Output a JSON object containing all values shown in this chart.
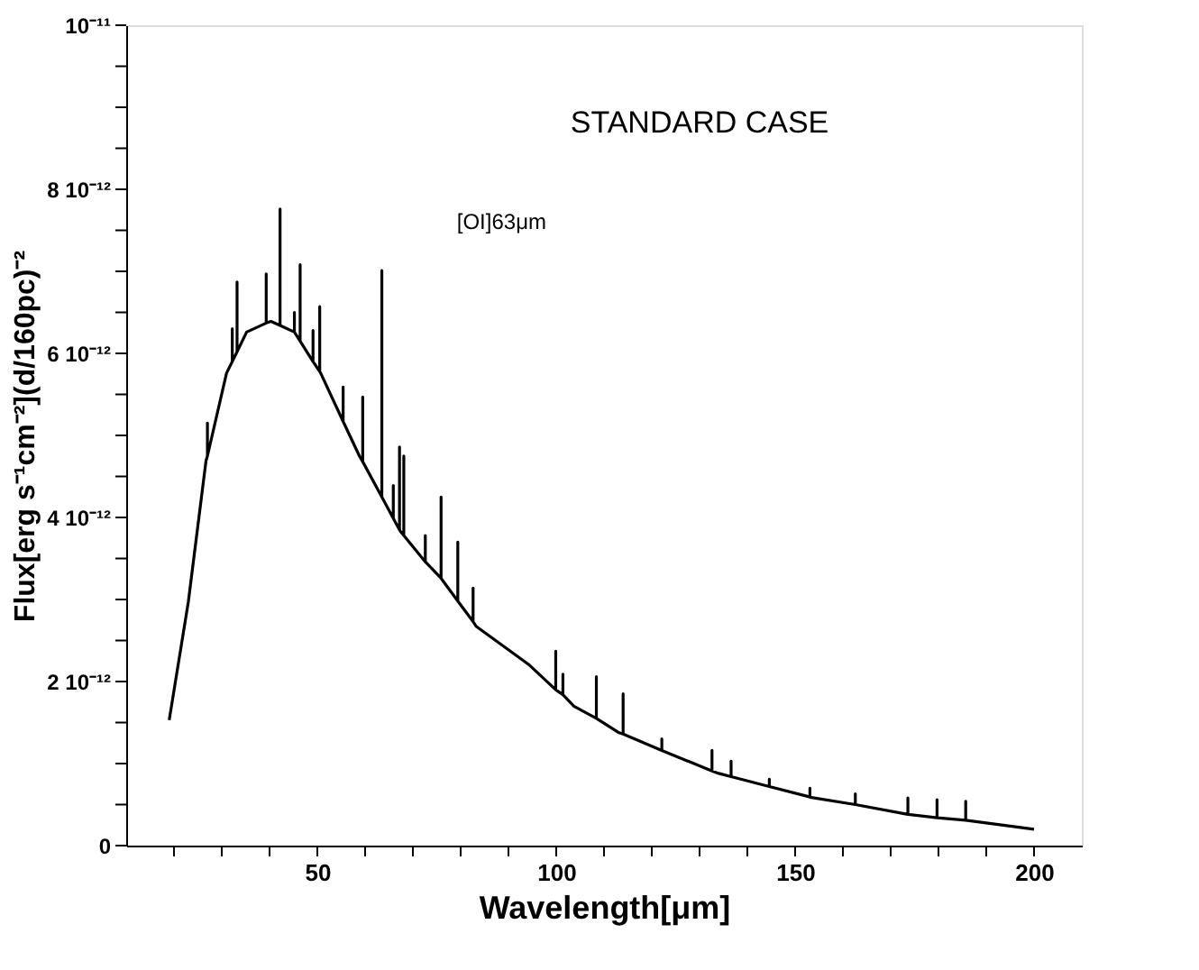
{
  "chart_data": {
    "type": "line",
    "xlabel": "Wavelength[μm]",
    "ylabel": "Flux[erg s⁻¹cm⁻²](d/160pc)⁻²",
    "xlim": [
      10,
      210
    ],
    "ylim": [
      0,
      1e-11
    ],
    "xticks": [
      {
        "value": 20,
        "label": null
      },
      {
        "value": 30,
        "label": null
      },
      {
        "value": 40,
        "label": null
      },
      50,
      {
        "value": 60,
        "label": null
      },
      {
        "value": 70,
        "label": null
      },
      {
        "value": 80,
        "label": null
      },
      {
        "value": 90,
        "label": null
      },
      100,
      {
        "value": 110,
        "label": null
      },
      {
        "value": 120,
        "label": null
      },
      {
        "value": 130,
        "label": null
      },
      {
        "value": 140,
        "label": null
      },
      150,
      {
        "value": 160,
        "label": null
      },
      {
        "value": 170,
        "label": null
      },
      {
        "value": 180,
        "label": null
      },
      {
        "value": 190,
        "label": null
      },
      200
    ],
    "yticks": [
      0,
      {
        "value": 5e-13,
        "label": null
      },
      {
        "value": 1e-12,
        "label": null
      },
      {
        "value": 1.5e-12,
        "label": null
      },
      {
        "value": 2e-12,
        "label": "2 10⁻¹²"
      },
      {
        "value": 2.5e-12,
        "label": null
      },
      {
        "value": 3e-12,
        "label": null
      },
      {
        "value": 3.5e-12,
        "label": null
      },
      {
        "value": 4e-12,
        "label": "4 10⁻¹²"
      },
      {
        "value": 4.5e-12,
        "label": null
      },
      {
        "value": 5e-12,
        "label": null
      },
      {
        "value": 5.5e-12,
        "label": null
      },
      {
        "value": 6e-12,
        "label": "6 10⁻¹²"
      },
      {
        "value": 6.5e-12,
        "label": null
      },
      {
        "value": 7e-12,
        "label": null
      },
      {
        "value": 7.5e-12,
        "label": null
      },
      {
        "value": 8e-12,
        "label": "8 10⁻¹²"
      },
      {
        "value": 8.5e-12,
        "label": null
      },
      {
        "value": 9e-12,
        "label": null
      },
      {
        "value": 9.5e-12,
        "label": null
      },
      {
        "value": 1e-11,
        "label": "10⁻¹¹"
      }
    ],
    "grid": false,
    "marker": "none",
    "line_style": "solid",
    "annotations": [
      "STANDARD CASE",
      "[OI]63μm"
    ],
    "series": [
      {
        "color": "#000000",
        "x": [
          19,
          23,
          26.7,
          27,
          27,
          27,
          31,
          32.2,
          32.2,
          32.2,
          33.2,
          33.2,
          33.2,
          35.2,
          39.3,
          39.3,
          39.3,
          40.3,
          42.2,
          42.2,
          42.2,
          45.2,
          45.2,
          45.2,
          46.4,
          46.4,
          46.4,
          49.1,
          49.1,
          49.1,
          50.5,
          50.5,
          50.5,
          50.7,
          55.4,
          55.4,
          55.4,
          58.8,
          59.5,
          59.5,
          59.5,
          63.5,
          63.5,
          63.5,
          65.9,
          65.9,
          65.9,
          67.2,
          67.2,
          67.2,
          67.4,
          68.1,
          68.1,
          68.1,
          72.6,
          72.6,
          72.6,
          75.9,
          75.9,
          75.9,
          76,
          79.4,
          79.4,
          79.4,
          82.6,
          82.6,
          82.6,
          83.3,
          94.4,
          99.9,
          99.9,
          99.9,
          101.4,
          101.4,
          101.4,
          103.7,
          108.4,
          108.4,
          108.4,
          113,
          114,
          114,
          114,
          122.1,
          122.1,
          122.1,
          132.6,
          132.6,
          132.6,
          134,
          136.6,
          136.6,
          136.6,
          144.6,
          144.6,
          144.6,
          152.6,
          153.1,
          153.1,
          153.1,
          162.6,
          162.6,
          162.6,
          173.6,
          173.6,
          173.6,
          179.7,
          179.7,
          179.7,
          185.7,
          185.7,
          185.7,
          200
        ],
        "values": [
          1.53e-12,
          2.97e-12,
          4.69e-12,
          4.75e-12,
          5.15e-12,
          4.75e-12,
          5.76e-12,
          5.9e-12,
          6.3e-12,
          5.9e-12,
          6.02e-12,
          6.87e-12,
          6.02e-12,
          6.26e-12,
          6.37e-12,
          6.97e-12,
          6.37e-12,
          6.39e-12,
          6.34e-12,
          7.76e-12,
          6.34e-12,
          6.26e-12,
          6.5e-12,
          6.26e-12,
          6.15e-12,
          7.08e-12,
          6.15e-12,
          5.9e-12,
          6.28e-12,
          5.9e-12,
          5.78e-12,
          6.57e-12,
          5.78e-12,
          5.76e-12,
          5.17e-12,
          5.59e-12,
          5.17e-12,
          4.75e-12,
          4.68e-12,
          5.47e-12,
          4.68e-12,
          4.25e-12,
          7.01e-12,
          4.25e-12,
          3.99e-12,
          4.39e-12,
          3.99e-12,
          3.85e-12,
          4.86e-12,
          3.85e-12,
          3.83e-12,
          3.78e-12,
          4.75e-12,
          3.78e-12,
          3.46e-12,
          3.78e-12,
          3.46e-12,
          3.26e-12,
          4.25e-12,
          3.26e-12,
          3.25e-12,
          2.98e-12,
          3.7e-12,
          2.98e-12,
          2.73e-12,
          3.14e-12,
          2.73e-12,
          2.67e-12,
          2.2e-12,
          1.9e-12,
          2.37e-12,
          1.9e-12,
          1.84e-12,
          2.09e-12,
          1.84e-12,
          1.7e-12,
          1.55e-12,
          2.06e-12,
          1.55e-12,
          1.38e-12,
          1.36e-12,
          1.85e-12,
          1.36e-12,
          1.16e-12,
          1.3e-12,
          1.16e-12,
          9.1e-13,
          1.16e-12,
          9.1e-13,
          8.8e-13,
          8.4e-13,
          1.03e-12,
          8.4e-13,
          7.2e-13,
          8.1e-13,
          7.2e-13,
          6e-13,
          5.9e-13,
          7e-13,
          5.9e-13,
          5e-13,
          6.3e-13,
          5e-13,
          3.8e-13,
          5.8e-13,
          3.8e-13,
          3.4e-13,
          5.6e-13,
          3.4e-13,
          3.1e-13,
          5.4e-13,
          3.1e-13,
          2e-13
        ]
      }
    ]
  }
}
